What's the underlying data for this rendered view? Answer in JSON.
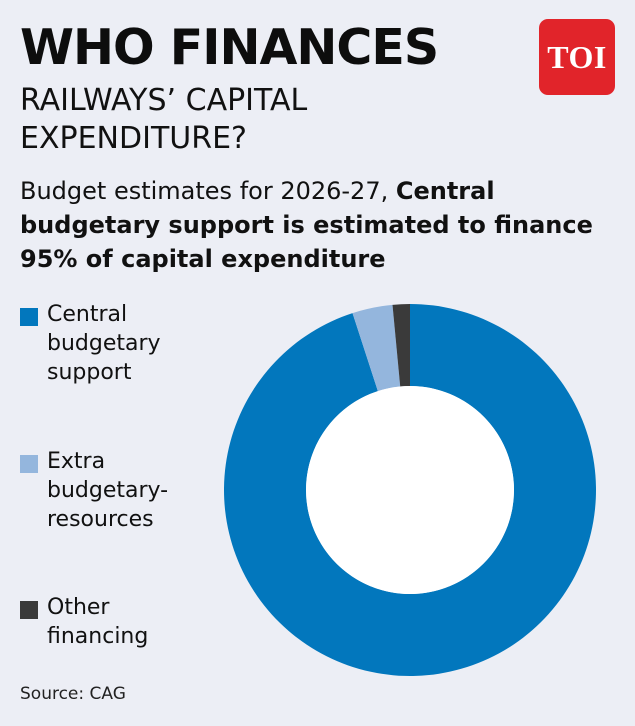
{
  "header": {
    "title": "WHO FINANCES",
    "subtitle": "RAILWAYS’ CAPITAL EXPENDITURE?",
    "logo": "TOI"
  },
  "description": {
    "lead": "Budget estimates for 2026-27, ",
    "highlight": "Central budgetary support is estimated to finance 95% of capital expenditure"
  },
  "colors": {
    "central": "#0277bd",
    "extra": "#94b6dd",
    "other": "#3a3a3a",
    "brand": "#e1242a",
    "background": "#eceef5"
  },
  "chart_data": {
    "type": "pie",
    "donut": true,
    "categories": [
      "Central budgetary support",
      "Extra budgetary-resources",
      "Other financing"
    ],
    "values": [
      95,
      3.5,
      1.5
    ],
    "unit": "%",
    "start": "12 o'clock",
    "direction": "clockwise",
    "legend_position": "left"
  },
  "legend": [
    {
      "label": "Central\nbudgetary\nsupport",
      "color": "#0277bd"
    },
    {
      "label": "Extra\nbudgetary-\nresources",
      "color": "#94b6dd"
    },
    {
      "label": "Other\nfinancing",
      "color": "#3a3a3a"
    }
  ],
  "footer": {
    "source": "Source: CAG"
  }
}
